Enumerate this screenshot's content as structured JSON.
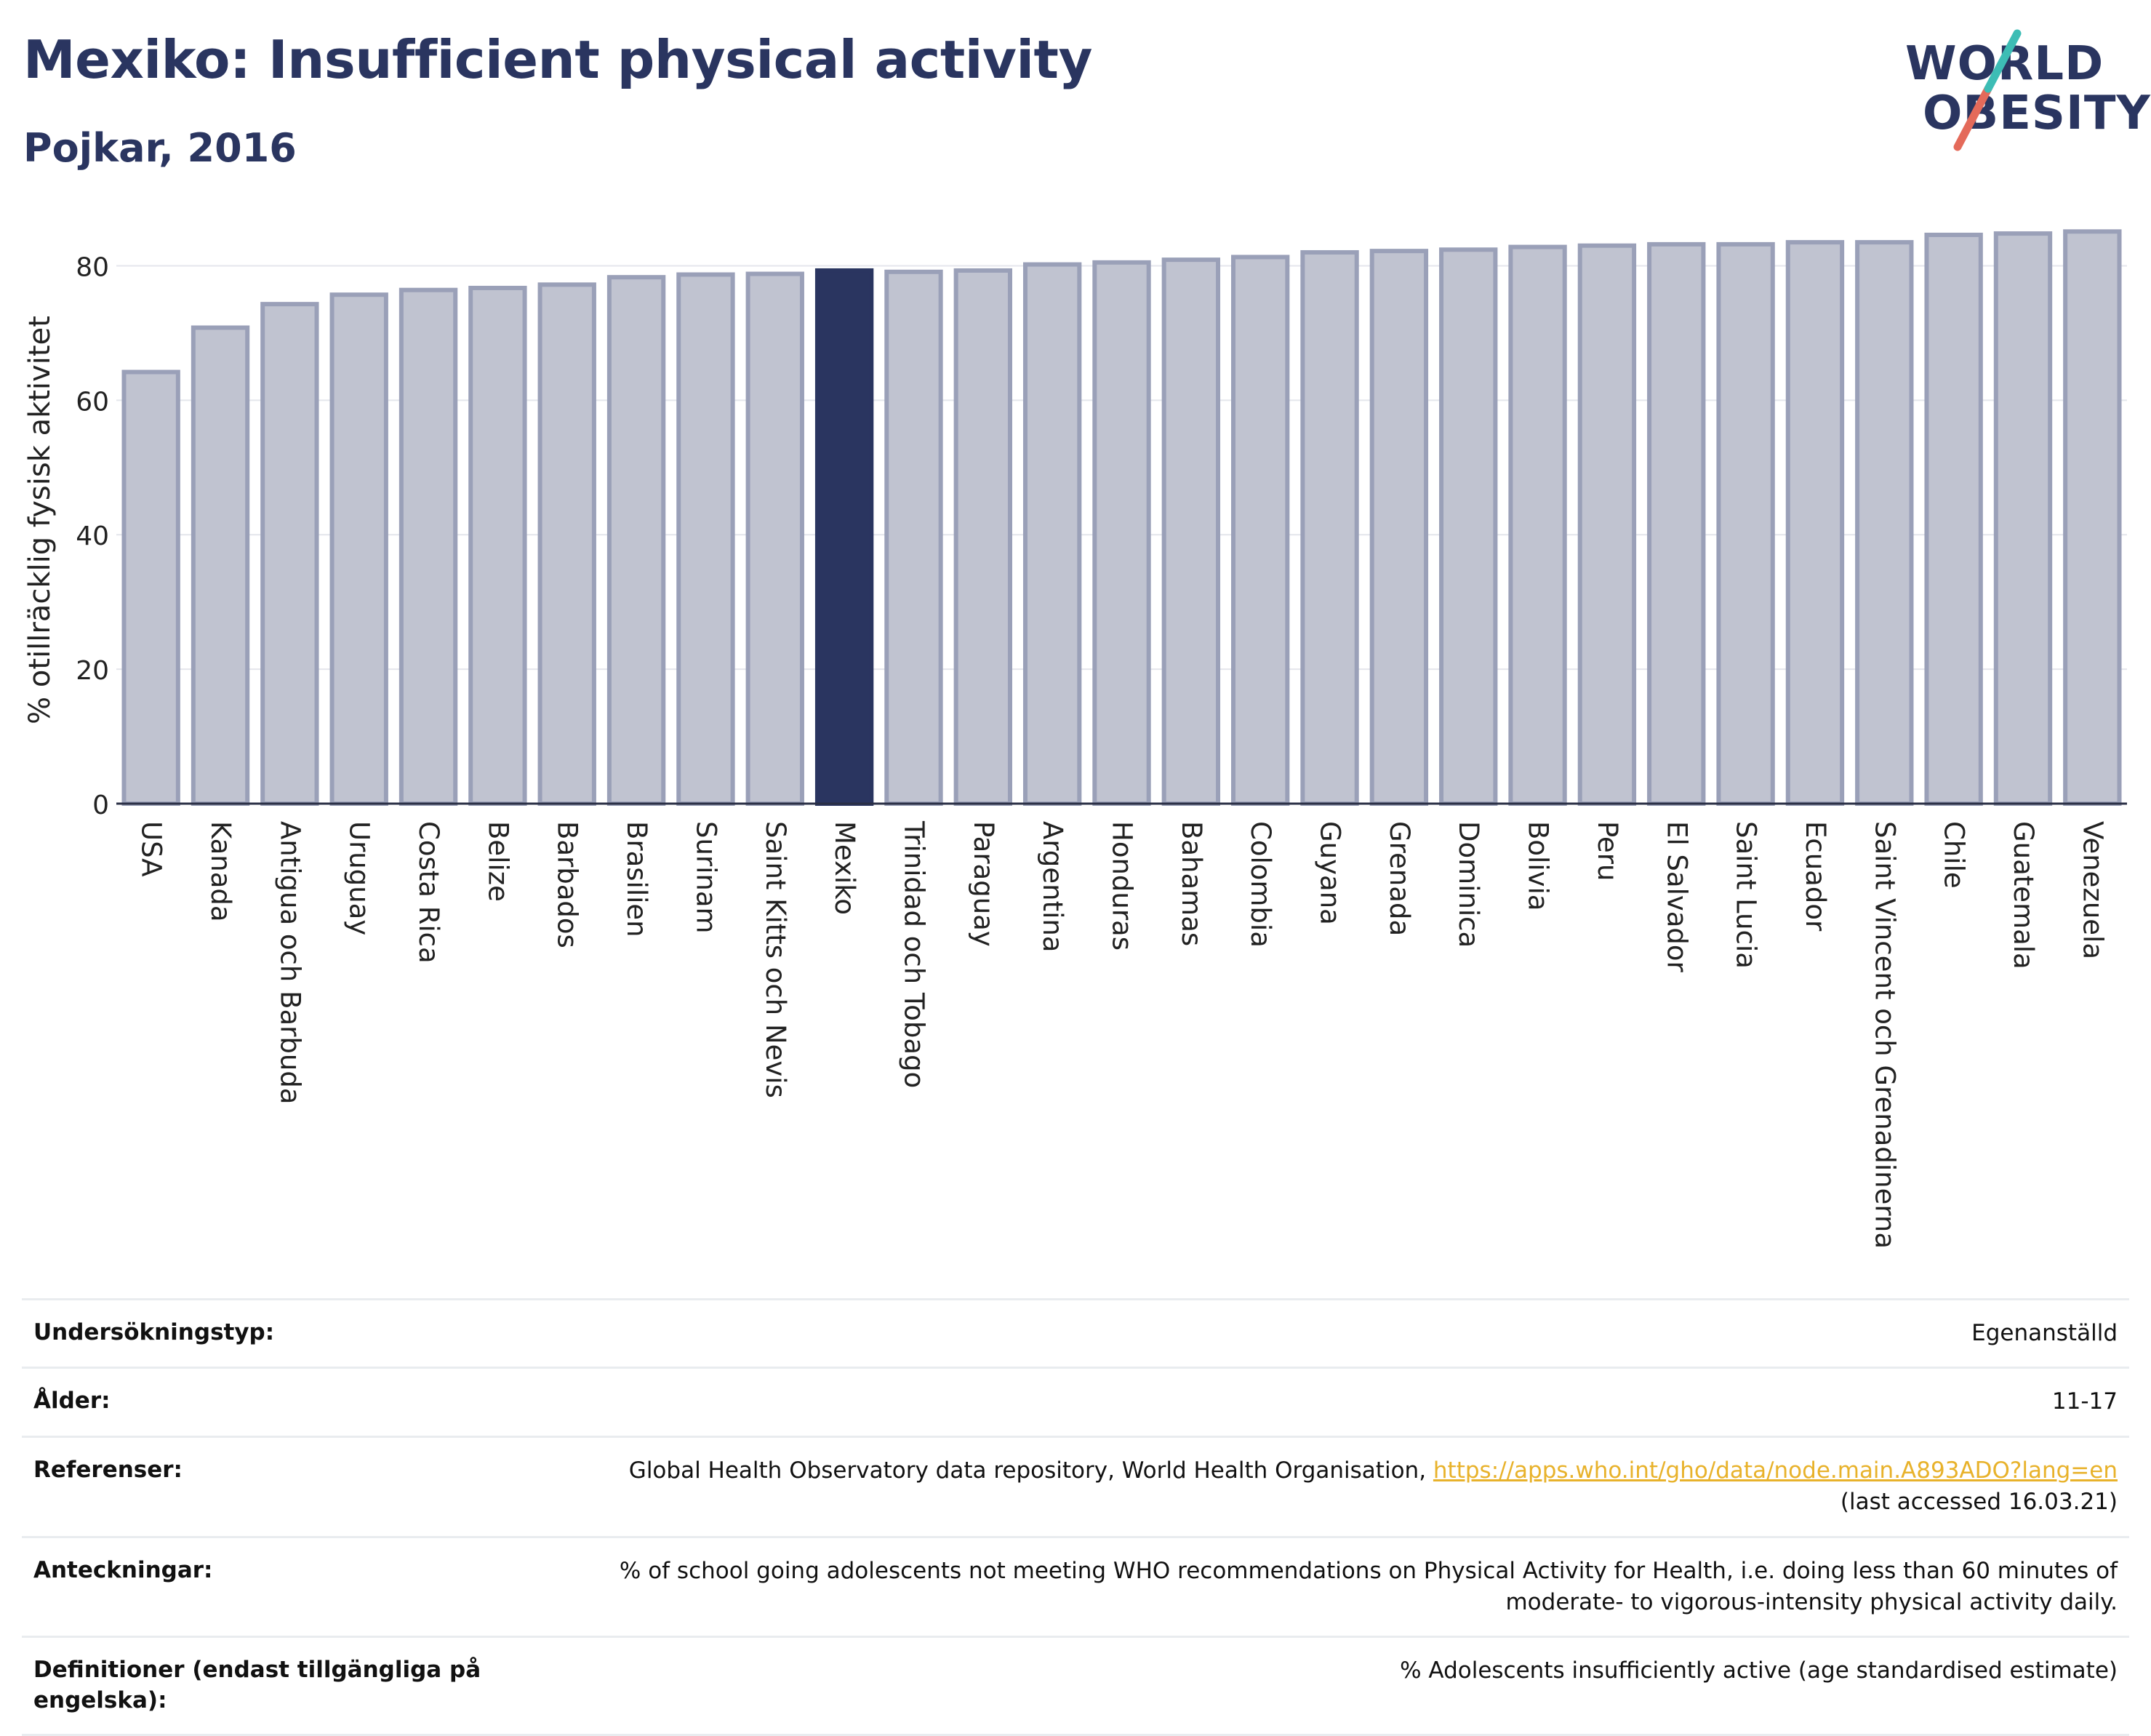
{
  "header": {
    "title": "Mexiko: Insufficient physical activity",
    "subtitle": "Pojkar, 2016"
  },
  "logo": {
    "line1": "WORLD",
    "line2": "OBESITY"
  },
  "colors": {
    "bar": "#c0c3d0",
    "bar_border": "#9aa0b8",
    "highlight": "#2a3560",
    "title": "#2a3560"
  },
  "chart_data": {
    "type": "bar",
    "title": "Mexiko: Insufficient physical activity",
    "subtitle": "Pojkar, 2016",
    "xlabel": "",
    "ylabel": "% otillräcklig fysisk aktivitet",
    "ylim": [
      0,
      86
    ],
    "yticks": [
      0,
      20,
      40,
      60,
      80
    ],
    "grid": true,
    "highlight": "Mexiko",
    "categories": [
      "USA",
      "Kanada",
      "Antigua och Barbuda",
      "Uruguay",
      "Costa Rica",
      "Belize",
      "Barbados",
      "Brasilien",
      "Surinam",
      "Saint Kitts och Nevis",
      "Mexiko",
      "Trinidad och Tobago",
      "Paraguay",
      "Argentina",
      "Honduras",
      "Bahamas",
      "Colombia",
      "Guyana",
      "Grenada",
      "Dominica",
      "Bolivia",
      "Peru",
      "El Salvador",
      "Saint Lucia",
      "Ecuador",
      "Saint Vincent och Grenadinerna",
      "Chile",
      "Guatemala",
      "Venezuela"
    ],
    "values": [
      64.2,
      70.8,
      74.3,
      75.7,
      76.4,
      76.7,
      77.2,
      78.3,
      78.7,
      78.8,
      79.3,
      79.1,
      79.3,
      80.2,
      80.5,
      80.9,
      81.3,
      82.0,
      82.2,
      82.4,
      82.8,
      83.0,
      83.2,
      83.2,
      83.5,
      83.5,
      84.6,
      84.8,
      85.1
    ]
  },
  "meta": [
    {
      "label": "Undersökningstyp:",
      "value": "Egenanställd"
    },
    {
      "label": "Ålder:",
      "value": "11-17"
    },
    {
      "label": "Referenser:",
      "value_prefix": "Global Health Observatory data repository, World Health Organisation, ",
      "link": "https://apps.who.int/gho/data/node.main.A893ADO?lang=en",
      "value_suffix": "(last accessed 16.03.21)"
    },
    {
      "label": "Anteckningar:",
      "value": "% of school going adolescents not meeting WHO recommendations on Physical Activity for Health, i.e. doing less than 60 minutes of moderate- to vigorous-intensity physical activity daily."
    },
    {
      "label": "Definitioner (endast tillgängliga på engelska):",
      "value": "% Adolescents insufficiently active (age standardised estimate)"
    }
  ]
}
